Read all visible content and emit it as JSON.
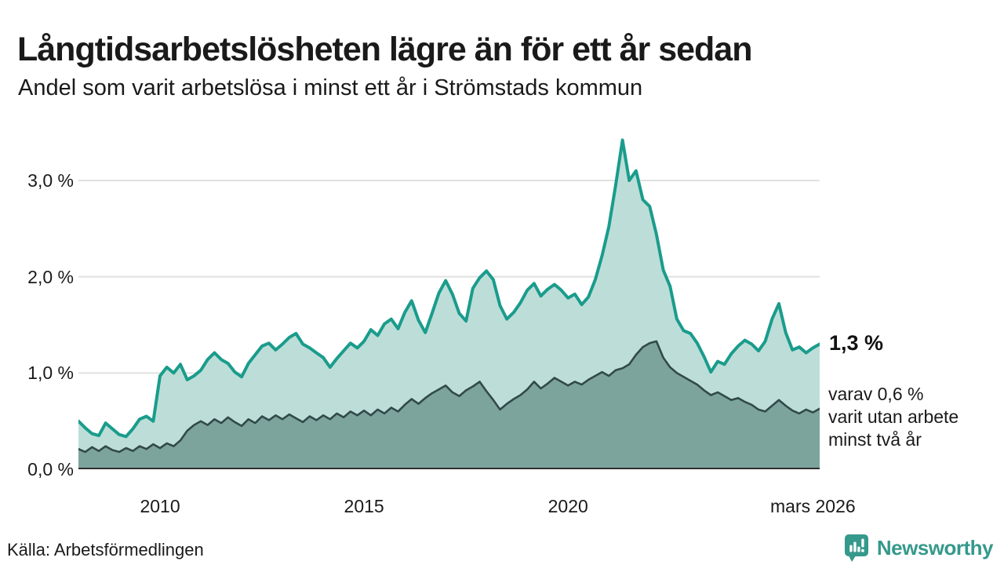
{
  "header": {
    "title": "Långtidsarbetslösheten lägre än för ett år sedan",
    "subtitle": "Andel som varit arbetslösa i minst ett år i Strömstads kommun"
  },
  "chart_data": {
    "type": "area",
    "title": "Långtidsarbetslösheten lägre än för ett år sedan",
    "subtitle": "Andel som varit arbetslösa i minst ett år i Strömstads kommun",
    "x_start": 2008.0,
    "x_step": 0.1666667,
    "ylim": [
      0,
      3.53
    ],
    "grid": "horizontal",
    "colors": {
      "series1_line": "#1a9c8c",
      "series1_fill": "#b9dcd6",
      "series2_line": "#32494a",
      "series2_fill": "#7ca49d",
      "gridline": "#e1e1e1",
      "baseline": "#2e2e2e"
    },
    "yticks": [
      {
        "value": 0.0,
        "label": "0,0 %"
      },
      {
        "value": 1.0,
        "label": "1,0 %"
      },
      {
        "value": 2.0,
        "label": "2,0 %"
      },
      {
        "value": 3.0,
        "label": "3,0 %"
      }
    ],
    "xticks": [
      {
        "x": 2010.0,
        "label": "2010"
      },
      {
        "x": 2015.0,
        "label": "2015"
      },
      {
        "x": 2020.0,
        "label": "2020"
      },
      {
        "x": 2026.0,
        "label": "mars 2026"
      }
    ],
    "series": [
      {
        "name": "Andel arbetslösa minst ett år",
        "end_value_label": "1,3 %",
        "values": [
          0.5,
          0.43,
          0.37,
          0.35,
          0.48,
          0.42,
          0.36,
          0.34,
          0.42,
          0.52,
          0.55,
          0.5,
          0.97,
          1.06,
          1.0,
          1.09,
          0.93,
          0.97,
          1.03,
          1.14,
          1.21,
          1.14,
          1.1,
          1.01,
          0.96,
          1.1,
          1.19,
          1.28,
          1.31,
          1.24,
          1.3,
          1.37,
          1.41,
          1.3,
          1.26,
          1.21,
          1.16,
          1.06,
          1.15,
          1.23,
          1.31,
          1.26,
          1.33,
          1.45,
          1.39,
          1.51,
          1.56,
          1.46,
          1.63,
          1.75,
          1.55,
          1.42,
          1.62,
          1.83,
          1.96,
          1.82,
          1.62,
          1.54,
          1.88,
          1.99,
          2.06,
          1.97,
          1.7,
          1.56,
          1.63,
          1.73,
          1.86,
          1.93,
          1.8,
          1.87,
          1.92,
          1.86,
          1.78,
          1.82,
          1.71,
          1.79,
          1.97,
          2.22,
          2.52,
          2.95,
          3.42,
          3.0,
          3.1,
          2.8,
          2.73,
          2.44,
          2.07,
          1.9,
          1.56,
          1.44,
          1.41,
          1.31,
          1.17,
          1.01,
          1.12,
          1.09,
          1.2,
          1.28,
          1.34,
          1.3,
          1.23,
          1.33,
          1.56,
          1.72,
          1.42,
          1.24,
          1.27,
          1.21,
          1.26,
          1.3
        ]
      },
      {
        "name": "Andel arbetslösa minst två år",
        "end_value_label": "0,6 %",
        "values": [
          0.21,
          0.18,
          0.23,
          0.19,
          0.24,
          0.2,
          0.18,
          0.22,
          0.19,
          0.24,
          0.21,
          0.26,
          0.22,
          0.27,
          0.24,
          0.3,
          0.4,
          0.46,
          0.5,
          0.46,
          0.52,
          0.48,
          0.54,
          0.49,
          0.45,
          0.52,
          0.48,
          0.55,
          0.51,
          0.56,
          0.52,
          0.57,
          0.53,
          0.49,
          0.55,
          0.51,
          0.56,
          0.52,
          0.58,
          0.54,
          0.6,
          0.56,
          0.61,
          0.56,
          0.62,
          0.58,
          0.64,
          0.6,
          0.67,
          0.73,
          0.68,
          0.74,
          0.79,
          0.83,
          0.87,
          0.8,
          0.76,
          0.82,
          0.86,
          0.91,
          0.81,
          0.72,
          0.62,
          0.68,
          0.73,
          0.77,
          0.83,
          0.91,
          0.84,
          0.89,
          0.95,
          0.91,
          0.87,
          0.91,
          0.88,
          0.93,
          0.97,
          1.01,
          0.97,
          1.03,
          1.05,
          1.09,
          1.19,
          1.27,
          1.31,
          1.33,
          1.16,
          1.06,
          1.0,
          0.96,
          0.92,
          0.88,
          0.82,
          0.77,
          0.8,
          0.76,
          0.72,
          0.74,
          0.7,
          0.67,
          0.62,
          0.6,
          0.66,
          0.72,
          0.66,
          0.61,
          0.58,
          0.62,
          0.59,
          0.63
        ]
      }
    ],
    "annotations": {
      "end_label_primary": "1,3 %",
      "end_label_secondary": [
        "varav 0,6 %",
        "varit utan arbete",
        "minst två år"
      ]
    }
  },
  "footer": {
    "source": "Källa: Arbetsförmedlingen",
    "brand": "Newsworthy",
    "brand_color": "#35998b"
  }
}
